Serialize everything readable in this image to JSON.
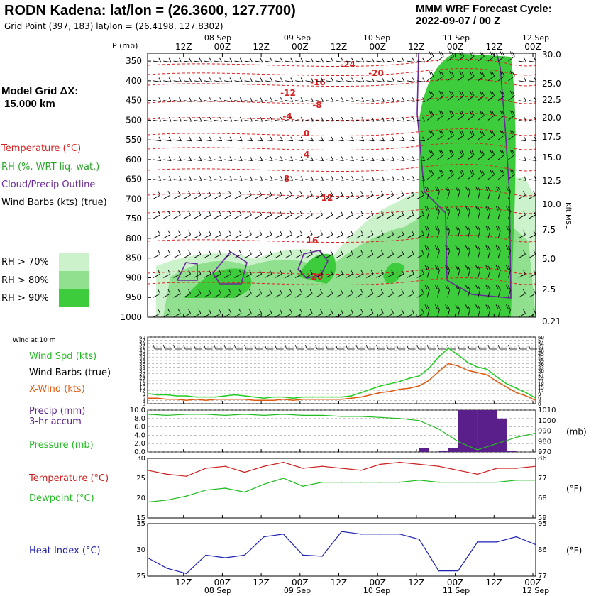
{
  "header": {
    "title": "RODN Kadena:  lat/lon = (26.3600, 127.7700)",
    "subtitle": "Grid Point (397, 183) lat/lon = (26.4198, 127.8302)",
    "cycle_line1": "MMM WRF Forecast Cycle:",
    "cycle_line2": "2022-09-07 / 00  Z"
  },
  "sidebar": {
    "grid_label": "Model Grid ΔX:",
    "grid_value": "15.000 km",
    "legend": [
      {
        "label": "Temperature (°C)",
        "color": "#d42020"
      },
      {
        "label": "RH (%, WRT liq. wat.)",
        "color": "#2aa52a"
      },
      {
        "label": "Cloud/Precip Outline",
        "color": "#6a2a9a"
      },
      {
        "label": "Wind Barbs (kts) (true)",
        "color": "#000000"
      }
    ],
    "rh_legend": [
      {
        "label": "RH > 70%",
        "color": "#ccf2cc"
      },
      {
        "label": "RH > 80%",
        "color": "#90e090"
      },
      {
        "label": "RH > 90%",
        "color": "#3ccc3c"
      }
    ],
    "wind10_label": "Wind at 10 m",
    "p2_labels": [
      {
        "label": "Wind Spd (kts)",
        "color": "#22bb22"
      },
      {
        "label": "Wind Barbs (true)",
        "color": "#000000"
      },
      {
        "label": "X-Wind (kts)",
        "color": "#e05a10"
      }
    ],
    "p3_labels": [
      {
        "label": "Precip (mm)",
        "color": "#5a1f8a"
      },
      {
        "label": "3-hr accum",
        "color": "#5a1f8a"
      },
      {
        "label": "Pressure (mb)",
        "color": "#22bb22"
      }
    ],
    "p4_labels": [
      {
        "label": "Temperature (°C)",
        "color": "#cc1f1f"
      },
      {
        "label": "Dewpoint (°C)",
        "color": "#22bb22"
      }
    ],
    "p5_labels": [
      {
        "label": "Heat Index (°C)",
        "color": "#2222aa"
      }
    ]
  },
  "chart_data": [
    {
      "type": "area",
      "name": "cross-section",
      "y_axis_label": "P (mb)",
      "right_axis_label": "Kft MSL",
      "pressure_levels": [
        "350",
        "400",
        "450",
        "500",
        "550",
        "600",
        "650",
        "700",
        "750",
        "800",
        "850",
        "900",
        "950",
        "1000"
      ],
      "kft_levels": [
        "30.0",
        "25.0",
        "22.5",
        "20.0",
        "17.5",
        "15.0",
        "12.5",
        "10.0",
        "7.5",
        "5.0",
        "2.5",
        "0.21"
      ],
      "time_ticks": [
        "12Z",
        "00Z",
        "12Z",
        "00Z",
        "12Z",
        "00Z",
        "12Z",
        "00Z",
        "12Z",
        "00Z"
      ],
      "date_labels": [
        "08 Sep",
        "09 Sep",
        "10 Sep",
        "11 Sep",
        "12 Sep"
      ],
      "temp_labels": [
        "-24",
        "-20",
        "-16",
        "-12",
        "-8",
        "-4",
        "0",
        "4",
        "8",
        "12",
        "16",
        "20"
      ]
    },
    {
      "type": "line",
      "name": "wind",
      "ylim": [
        0,
        60
      ],
      "left_ticks": [
        "60",
        "57",
        "54",
        "51",
        "48",
        "45",
        "42",
        "39",
        "36",
        "33",
        "30",
        "27",
        "24",
        "21",
        "18",
        "15",
        "12",
        "9",
        "6",
        "3",
        "0"
      ],
      "right_ticks": [
        "60",
        "57",
        "54",
        "51",
        "48",
        "45",
        "42",
        "39",
        "36",
        "33",
        "30",
        "27",
        "24",
        "21",
        "18",
        "15",
        "12",
        "9",
        "6",
        "3",
        "0"
      ],
      "x": [
        0,
        3,
        6,
        9,
        12,
        15,
        18,
        21,
        24,
        27,
        30,
        33,
        36,
        39,
        42,
        45,
        48,
        51,
        54,
        57,
        60,
        63,
        66,
        69,
        72,
        75,
        78,
        81,
        84,
        87,
        90,
        93,
        96,
        99,
        102,
        105,
        108,
        111,
        114,
        117,
        120
      ],
      "series": [
        {
          "name": "Wind Spd (kts)",
          "color": "#22cc22",
          "values": [
            9,
            8,
            8,
            7,
            7,
            6,
            6,
            6,
            7,
            8,
            7,
            6,
            5,
            6,
            6,
            5,
            6,
            6,
            6,
            6,
            6,
            7,
            10,
            13,
            16,
            18,
            20,
            23,
            25,
            32,
            42,
            50,
            44,
            37,
            33,
            31,
            24,
            18,
            14,
            10,
            5
          ]
        },
        {
          "name": "X-Wind (kts)",
          "color": "#e05a10",
          "values": [
            5,
            5,
            4,
            4,
            3,
            4,
            3,
            4,
            4,
            4,
            4,
            3,
            3,
            3,
            4,
            3,
            4,
            4,
            4,
            4,
            4,
            5,
            6,
            8,
            10,
            11,
            13,
            14,
            16,
            21,
            29,
            36,
            34,
            30,
            28,
            26,
            20,
            15,
            10,
            7,
            3
          ]
        }
      ]
    },
    {
      "type": "bar",
      "name": "precip-pressure",
      "precip_ylim": [
        0,
        10
      ],
      "pressure_ylim": [
        970,
        1010
      ],
      "left_ticks": [
        "10.0",
        "8.0",
        "6.0",
        "4.0",
        "2.0",
        "0.0"
      ],
      "right_ticks": [
        "1010",
        "1000",
        "990",
        "980",
        "970"
      ],
      "right_unit": "(mb)",
      "precip_x": [
        84,
        87,
        90,
        93,
        96,
        99,
        102,
        105,
        108,
        111,
        114
      ],
      "precip_values": [
        0,
        1,
        0,
        0.3,
        1,
        10,
        10,
        10,
        10,
        8,
        0.2
      ],
      "pressure_x": [
        0,
        6,
        12,
        18,
        24,
        30,
        36,
        42,
        48,
        54,
        60,
        66,
        72,
        78,
        84,
        90,
        96,
        102,
        108,
        114,
        120
      ],
      "pressure_values": [
        1006,
        1005,
        1006,
        1006,
        1005,
        1006,
        1005,
        1006,
        1005,
        1005,
        1004,
        1004,
        1003,
        1002,
        1000,
        992,
        980,
        972,
        978,
        984,
        988
      ]
    },
    {
      "type": "line",
      "name": "temperature-dewpoint",
      "ylim": [
        15,
        30
      ],
      "left_ticks": [
        "30",
        "25",
        "20",
        "15"
      ],
      "right_ticks": [
        "86",
        "77",
        "68",
        "59"
      ],
      "right_unit": "(°F)",
      "x": [
        0,
        6,
        12,
        18,
        24,
        30,
        36,
        42,
        48,
        54,
        60,
        66,
        72,
        78,
        84,
        90,
        96,
        102,
        108,
        114,
        120
      ],
      "series": [
        {
          "name": "Temperature (°C)",
          "color": "#cc1f1f",
          "values": [
            27,
            26,
            25.5,
            27.5,
            28,
            26.5,
            28,
            29,
            27.5,
            28,
            27.5,
            27,
            28.5,
            29,
            28.5,
            28,
            27,
            26,
            27.5,
            27.5,
            28
          ]
        },
        {
          "name": "Dewpoint (°C)",
          "color": "#22bb22",
          "values": [
            19,
            19.5,
            20.5,
            22,
            22.5,
            21.5,
            23.5,
            25,
            23,
            24,
            24,
            24,
            24,
            24,
            24.5,
            24,
            24,
            24,
            24,
            24.5,
            24.5
          ]
        }
      ]
    },
    {
      "type": "line",
      "name": "heat-index",
      "ylim": [
        25,
        35
      ],
      "left_ticks": [
        "35",
        "30",
        "25"
      ],
      "right_ticks": [
        "95",
        "86",
        "77"
      ],
      "right_unit": "(°F)",
      "x": [
        0,
        6,
        12,
        18,
        24,
        30,
        36,
        42,
        48,
        54,
        60,
        66,
        72,
        78,
        84,
        90,
        96,
        102,
        108,
        114,
        120
      ],
      "series": [
        {
          "name": "Heat Index (°C)",
          "color": "#1e22b0",
          "values": [
            28.5,
            26.5,
            25.5,
            29,
            28.5,
            29,
            32.5,
            33,
            29,
            28.8,
            33.5,
            33,
            33,
            33,
            32,
            26,
            26,
            31.5,
            31.5,
            32.5,
            31
          ]
        }
      ]
    }
  ]
}
